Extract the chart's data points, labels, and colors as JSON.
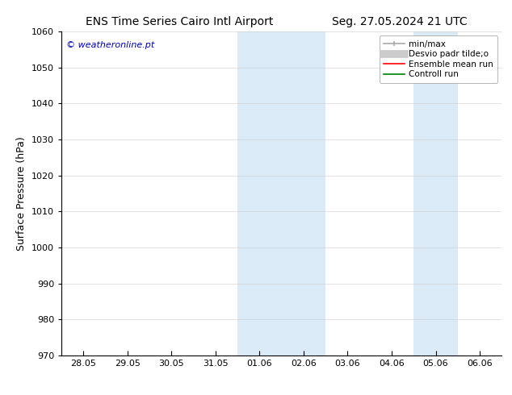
{
  "title_left": "ENS Time Series Cairo Intl Airport",
  "title_right": "Seg. 27.05.2024 21 UTC",
  "ylabel": "Surface Pressure (hPa)",
  "ylim": [
    970,
    1060
  ],
  "yticks": [
    970,
    980,
    990,
    1000,
    1010,
    1020,
    1030,
    1040,
    1050,
    1060
  ],
  "xtick_labels": [
    "28.05",
    "29.05",
    "30.05",
    "31.05",
    "01.06",
    "02.06",
    "03.06",
    "04.06",
    "05.06",
    "06.06"
  ],
  "xtick_positions": [
    0,
    1,
    2,
    3,
    4,
    5,
    6,
    7,
    8,
    9
  ],
  "xlim": [
    -0.5,
    9.5
  ],
  "shaded_bands": [
    {
      "x_start": 3.5,
      "x_end": 5.5
    },
    {
      "x_start": 7.5,
      "x_end": 8.5
    }
  ],
  "shaded_color": "#daeaf7",
  "watermark": "© weatheronline.pt",
  "watermark_color": "#0000bb",
  "bg_color": "#ffffff",
  "legend_entries": [
    {
      "label": "min/max",
      "color": "#aaaaaa",
      "lw": 1.2
    },
    {
      "label": "Desvio padr tilde;o",
      "color": "#cccccc",
      "lw": 7
    },
    {
      "label": "Ensemble mean run",
      "color": "#ff0000",
      "lw": 1.2
    },
    {
      "label": "Controll run",
      "color": "#008000",
      "lw": 1.2
    }
  ],
  "title_fontsize": 10,
  "ylabel_fontsize": 9,
  "tick_fontsize": 8,
  "legend_fontsize": 7.5,
  "watermark_fontsize": 8
}
